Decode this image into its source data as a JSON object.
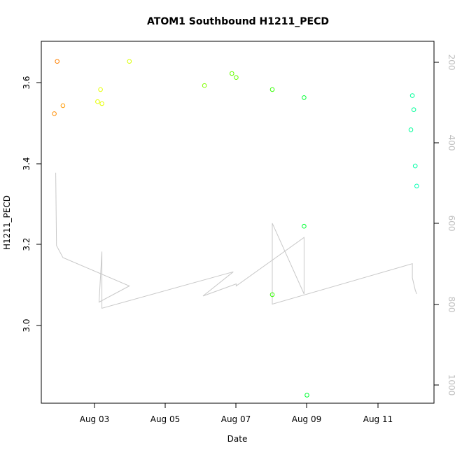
{
  "chart_data": {
    "type": "scatter",
    "title": "ATOM1 Southbound H1211_PECD",
    "xlabel": "Date",
    "ylabel": "H1211_PECD",
    "x_ticks": [
      "Aug 03",
      "Aug 05",
      "Aug 07",
      "Aug 09",
      "Aug 11"
    ],
    "y_ticks": [
      "3.0",
      "3.2",
      "3.4",
      "3.6"
    ],
    "y2_ticks": [
      "200",
      "400",
      "600",
      "800",
      "1000"
    ],
    "xlim": [
      "2016-08-01T08:00",
      "2016-08-12T16:00"
    ],
    "ylim": [
      2.82,
      3.72
    ],
    "y2lim": [
      1050,
      155
    ],
    "grid": false,
    "points_series": {
      "name": "",
      "marker": "open-circle",
      "points": [
        {
          "x": "2016-08-01T19:00",
          "y": 3.67,
          "color": "#FF8000"
        },
        {
          "x": "2016-08-01T17:00",
          "y": 3.54,
          "color": "#FF8C00"
        },
        {
          "x": "2016-08-01T23:00",
          "y": 3.56,
          "color": "#FF9900"
        },
        {
          "x": "2016-08-03T01:00",
          "y": 3.6,
          "color": "#E6FF00"
        },
        {
          "x": "2016-08-02T23:00",
          "y": 3.57,
          "color": "#E6FF00"
        },
        {
          "x": "2016-08-03T02:00",
          "y": 3.565,
          "color": "#E6FF00"
        },
        {
          "x": "2016-08-03T21:00",
          "y": 3.67,
          "color": "#D9FF00"
        },
        {
          "x": "2016-08-06T01:00",
          "y": 3.61,
          "color": "#80FF00"
        },
        {
          "x": "2016-08-06T20:00",
          "y": 3.64,
          "color": "#66FF00"
        },
        {
          "x": "2016-08-06T23:00",
          "y": 3.63,
          "color": "#66FF00"
        },
        {
          "x": "2016-08-08T00:00",
          "y": 3.6,
          "color": "#33FF00"
        },
        {
          "x": "2016-08-08T00:00",
          "y": 3.09,
          "color": "#33FF00"
        },
        {
          "x": "2016-08-08T22:00",
          "y": 3.58,
          "color": "#00FF33"
        },
        {
          "x": "2016-08-08T22:00",
          "y": 3.26,
          "color": "#00FF33"
        },
        {
          "x": "2016-08-09T00:00",
          "y": 2.84,
          "color": "#00FF33"
        },
        {
          "x": "2016-08-12T01:00",
          "y": 3.585,
          "color": "#00FF99"
        },
        {
          "x": "2016-08-12T02:00",
          "y": 3.55,
          "color": "#00FF99"
        },
        {
          "x": "2016-08-12T00:00",
          "y": 3.5,
          "color": "#00FF99"
        },
        {
          "x": "2016-08-12T03:00",
          "y": 3.41,
          "color": "#00FFA6"
        },
        {
          "x": "2016-08-12T04:00",
          "y": 3.36,
          "color": "#00FFB3"
        }
      ]
    },
    "line_series": {
      "name": "",
      "axis": "right",
      "color": "#c8c8c8",
      "points": [
        {
          "x": "2016-08-01T18:00",
          "y": 480
        },
        {
          "x": "2016-08-01T18:30",
          "y": 660
        },
        {
          "x": "2016-08-01T23:00",
          "y": 690
        },
        {
          "x": "2016-08-03T21:00",
          "y": 760
        },
        {
          "x": "2016-08-03T00:00",
          "y": 800
        },
        {
          "x": "2016-08-03T02:00",
          "y": 675
        },
        {
          "x": "2016-08-03T02:00",
          "y": 815
        },
        {
          "x": "2016-08-06T21:00",
          "y": 725
        },
        {
          "x": "2016-08-06T00:00",
          "y": 785
        },
        {
          "x": "2016-08-06T23:00",
          "y": 755
        },
        {
          "x": "2016-08-06T23:00",
          "y": 760
        },
        {
          "x": "2016-08-08T22:00",
          "y": 640
        },
        {
          "x": "2016-08-08T22:00",
          "y": 780
        },
        {
          "x": "2016-08-08T00:00",
          "y": 605
        },
        {
          "x": "2016-08-08T00:00",
          "y": 805
        },
        {
          "x": "2016-08-12T01:00",
          "y": 705
        },
        {
          "x": "2016-08-12T01:00",
          "y": 740
        },
        {
          "x": "2016-08-12T03:00",
          "y": 770
        },
        {
          "x": "2016-08-12T04:00",
          "y": 780
        }
      ]
    }
  }
}
